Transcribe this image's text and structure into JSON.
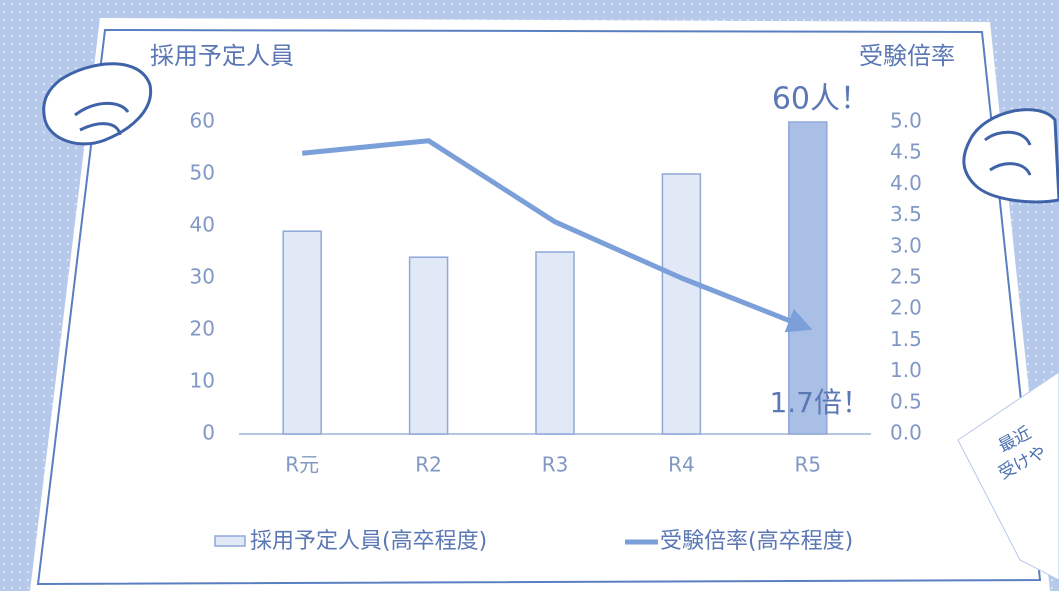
{
  "chart_data": {
    "type": "bar",
    "y_title": "採用予定人員",
    "y2_title": "受験倍率",
    "categories": [
      "R元",
      "R2",
      "R3",
      "R4",
      "R5"
    ],
    "series": [
      {
        "name": "採用予定人員(高卒程度)",
        "type": "bar",
        "colors": [
          "#e2e9f6",
          "#e2e9f6",
          "#e2e9f6",
          "#e2e9f6",
          "#a9bfe6"
        ],
        "values": [
          39,
          34,
          35,
          50,
          60
        ]
      },
      {
        "name": "受験倍率(高卒程度)",
        "type": "line",
        "axis": "y2",
        "color": "#7b9fd9",
        "values": [
          4.5,
          4.7,
          3.4,
          2.5,
          1.7
        ]
      }
    ],
    "ylim": [
      0,
      60
    ],
    "yticks": [
      0,
      10,
      20,
      30,
      40,
      50,
      60
    ],
    "y2lim": [
      0,
      5
    ],
    "y2ticks": [
      {
        "value": 0,
        "label": "0.0"
      },
      {
        "value": 0.5,
        "label": "0.5"
      },
      {
        "value": 1,
        "label": "1.0"
      },
      {
        "value": 1.5,
        "label": "1.5"
      },
      {
        "value": 2,
        "label": "2.0"
      },
      {
        "value": 2.5,
        "label": "2.5"
      },
      {
        "value": 3,
        "label": "3.0"
      },
      {
        "value": 3.5,
        "label": "3.5"
      },
      {
        "value": 4,
        "label": "4.0"
      },
      {
        "value": 4.5,
        "label": "4.5"
      },
      {
        "value": 5,
        "label": "5.0"
      }
    ],
    "annotations": [
      "60人！",
      "1.7倍！"
    ]
  },
  "corner_card": {
    "lines": [
      "最近",
      "受けや"
    ]
  }
}
